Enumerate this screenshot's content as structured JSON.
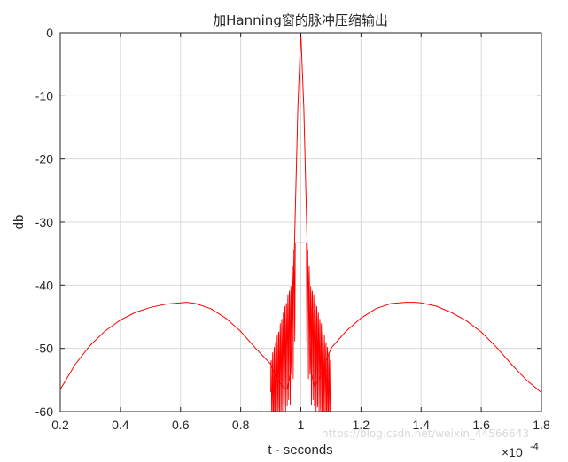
{
  "chart_data": {
    "type": "line",
    "title": "加Hanning窗的脉冲压缩输出",
    "xlabel": "t - seconds",
    "ylabel": "db",
    "x_exponent_label": "×10",
    "x_exponent_power": "-4",
    "xlim": [
      0.2,
      1.8
    ],
    "ylim": [
      -60,
      0
    ],
    "x_ticks": [
      0.2,
      0.4,
      0.6,
      0.8,
      1,
      1.2,
      1.4,
      1.6,
      1.8
    ],
    "x_tick_labels": [
      "0.2",
      "0.4",
      "0.6",
      "0.8",
      "1",
      "1.2",
      "1.4",
      "1.6",
      "1.8"
    ],
    "y_ticks": [
      0,
      -10,
      -20,
      -30,
      -40,
      -50,
      -60
    ],
    "y_tick_labels": [
      "0",
      "-10",
      "-20",
      "-30",
      "-40",
      "-50",
      "-60"
    ],
    "grid": true,
    "series": [
      {
        "color": "#ff0000",
        "x": [
          0.2,
          0.25,
          0.3,
          0.35,
          0.4,
          0.45,
          0.5,
          0.55,
          0.6,
          0.62,
          0.65,
          0.7,
          0.75,
          0.8,
          0.85,
          0.9,
          0.92,
          0.94,
          0.955,
          0.965,
          0.975,
          0.98,
          0.99,
          1.0,
          1.01,
          1.02,
          1.025,
          1.035,
          1.045,
          1.06,
          1.08,
          1.1,
          1.15,
          1.2,
          1.25,
          1.3,
          1.35,
          1.38,
          1.4,
          1.45,
          1.5,
          1.55,
          1.6,
          1.65,
          1.7,
          1.75,
          1.8
        ],
        "y": [
          -56.5,
          -52.5,
          -49.5,
          -47.2,
          -45.5,
          -44.3,
          -43.5,
          -43.0,
          -42.8,
          -42.7,
          -42.9,
          -43.7,
          -45.2,
          -47.3,
          -50.0,
          -52.5,
          -55.0,
          -56.0,
          -56.5,
          -54.0,
          -41.0,
          -31.5,
          -12.0,
          0.0,
          -12.0,
          -31.5,
          -41.0,
          -54.0,
          -56.0,
          -55.0,
          -52.5,
          -50.0,
          -47.3,
          -45.2,
          -43.7,
          -42.9,
          -42.7,
          -42.7,
          -42.8,
          -43.3,
          -44.3,
          -45.6,
          -47.4,
          -49.8,
          -52.5,
          -55.0,
          -57.0
        ]
      }
    ]
  },
  "watermark": "https://blog.csdn.net/weixin_44566643"
}
